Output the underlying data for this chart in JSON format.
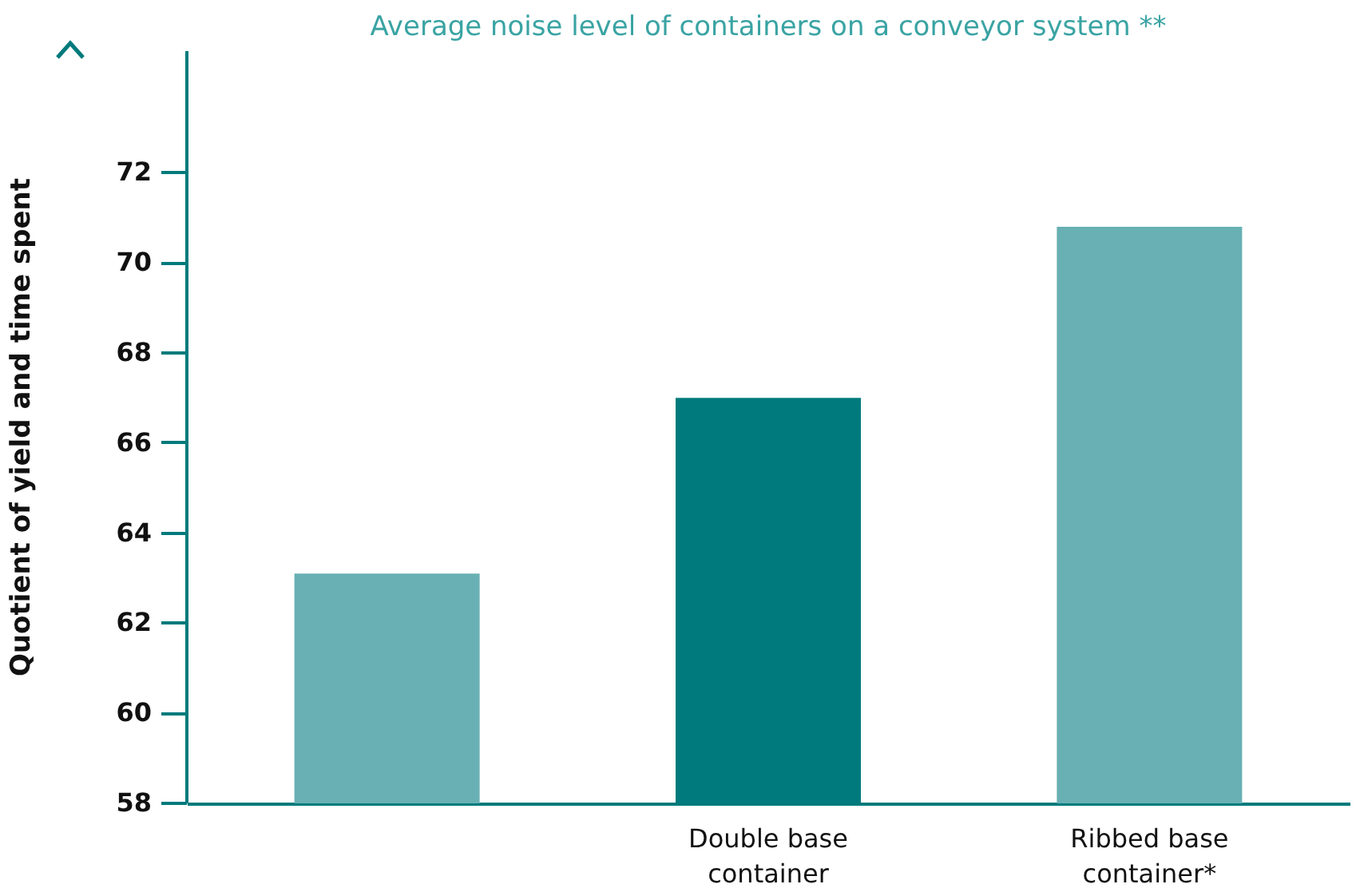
{
  "chart_data": {
    "type": "bar",
    "title": "Average noise level of containers on a conveyor system **",
    "ylabel": "Quotient of yield and time spent",
    "categories": [
      null,
      "Double base container",
      "Ribbed base container*"
    ],
    "values": [
      63.1,
      67.0,
      70.8
    ],
    "colors": [
      "#68b0b3",
      "#007a7c",
      "#68b0b3"
    ],
    "ylim": [
      58,
      74.7
    ],
    "yticks": [
      58,
      60,
      62,
      64,
      66,
      68,
      70,
      72
    ],
    "grid": false
  }
}
